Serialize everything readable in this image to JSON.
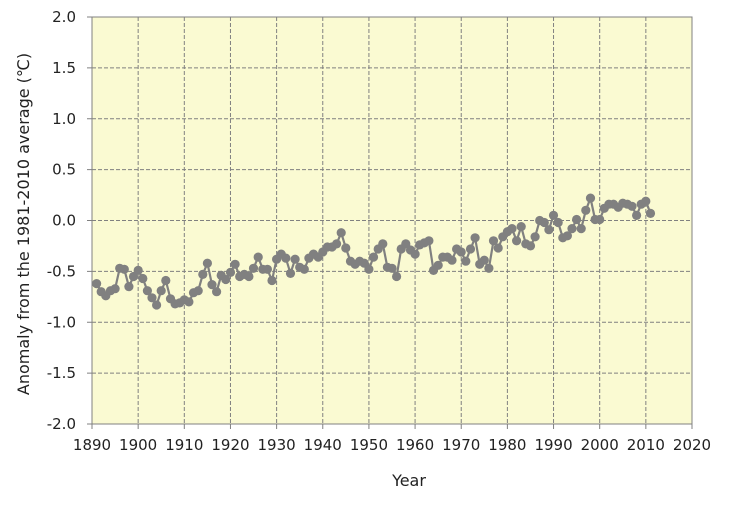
{
  "chart_data": {
    "type": "line",
    "title": "",
    "xlabel": "Year",
    "ylabel": "Anomaly from  the 1981-2010 average (℃)",
    "xlim": [
      1890,
      2020
    ],
    "ylim": [
      -2.0,
      2.0
    ],
    "x_ticks": [
      1890,
      1900,
      1910,
      1920,
      1930,
      1940,
      1950,
      1960,
      1970,
      1980,
      1990,
      2000,
      2010,
      2020
    ],
    "x_tick_labels": [
      "1890",
      "1900",
      "1910",
      "1920",
      "1930",
      "1940",
      "1950",
      "1960",
      "1970",
      "1980",
      "1990",
      "2000",
      "2010",
      "2020"
    ],
    "y_ticks": [
      -2.0,
      -1.5,
      -1.0,
      -0.5,
      0.0,
      0.5,
      1.0,
      1.5,
      2.0
    ],
    "y_tick_labels": [
      "-2.0",
      "-1.5",
      "-1.0",
      "-0.5",
      "0.0",
      "0.5",
      "1.0",
      "1.5",
      "2.0"
    ],
    "grid": true,
    "legend": "none",
    "colors": {
      "plot_background": "#fafad2",
      "series": "#808080",
      "grid": "#808080",
      "axis": "#808080"
    },
    "series": [
      {
        "x": [
          1891,
          1892,
          1893,
          1894,
          1895,
          1896,
          1897,
          1898,
          1899,
          1900,
          1901,
          1902,
          1903,
          1904,
          1905,
          1906,
          1907,
          1908,
          1909,
          1910,
          1911,
          1912,
          1913,
          1914,
          1915,
          1916,
          1917,
          1918,
          1919,
          1920,
          1921,
          1922,
          1923,
          1924,
          1925,
          1926,
          1927,
          1928,
          1929,
          1930,
          1931,
          1932,
          1933,
          1934,
          1935,
          1936,
          1937,
          1938,
          1939,
          1940,
          1941,
          1942,
          1943,
          1944,
          1945,
          1946,
          1947,
          1948,
          1949,
          1950,
          1951,
          1952,
          1953,
          1954,
          1955,
          1956,
          1957,
          1958,
          1959,
          1960,
          1961,
          1962,
          1963,
          1964,
          1965,
          1966,
          1967,
          1968,
          1969,
          1970,
          1971,
          1972,
          1973,
          1974,
          1975,
          1976,
          1977,
          1978,
          1979,
          1980,
          1981,
          1982,
          1983,
          1984,
          1985,
          1986,
          1987,
          1988,
          1989,
          1990,
          1991,
          1992,
          1993,
          1994,
          1995,
          1996,
          1997,
          1998,
          1999,
          2000,
          2001,
          2002,
          2003,
          2004,
          2005,
          2006,
          2007,
          2008,
          2009,
          2010,
          2011
        ],
        "values": [
          -0.62,
          -0.7,
          -0.74,
          -0.69,
          -0.67,
          -0.47,
          -0.48,
          -0.65,
          -0.55,
          -0.49,
          -0.57,
          -0.69,
          -0.76,
          -0.83,
          -0.69,
          -0.59,
          -0.77,
          -0.82,
          -0.81,
          -0.78,
          -0.8,
          -0.71,
          -0.69,
          -0.53,
          -0.42,
          -0.63,
          -0.7,
          -0.54,
          -0.58,
          -0.51,
          -0.43,
          -0.55,
          -0.53,
          -0.55,
          -0.47,
          -0.36,
          -0.48,
          -0.48,
          -0.59,
          -0.38,
          -0.33,
          -0.37,
          -0.52,
          -0.38,
          -0.46,
          -0.48,
          -0.37,
          -0.33,
          -0.36,
          -0.31,
          -0.26,
          -0.26,
          -0.23,
          -0.12,
          -0.27,
          -0.4,
          -0.43,
          -0.4,
          -0.42,
          -0.48,
          -0.36,
          -0.28,
          -0.23,
          -0.46,
          -0.47,
          -0.55,
          -0.28,
          -0.23,
          -0.29,
          -0.33,
          -0.24,
          -0.22,
          -0.2,
          -0.49,
          -0.44,
          -0.36,
          -0.36,
          -0.39,
          -0.28,
          -0.31,
          -0.4,
          -0.28,
          -0.17,
          -0.43,
          -0.39,
          -0.47,
          -0.2,
          -0.27,
          -0.16,
          -0.11,
          -0.08,
          -0.2,
          -0.06,
          -0.23,
          -0.25,
          -0.16,
          0.0,
          -0.02,
          -0.09,
          0.05,
          -0.02,
          -0.17,
          -0.15,
          -0.08,
          0.01,
          -0.08,
          0.1,
          0.22,
          0.01,
          0.01,
          0.12,
          0.16,
          0.16,
          0.13,
          0.17,
          0.16,
          0.14,
          0.05,
          0.16,
          0.19,
          0.07
        ]
      }
    ]
  }
}
